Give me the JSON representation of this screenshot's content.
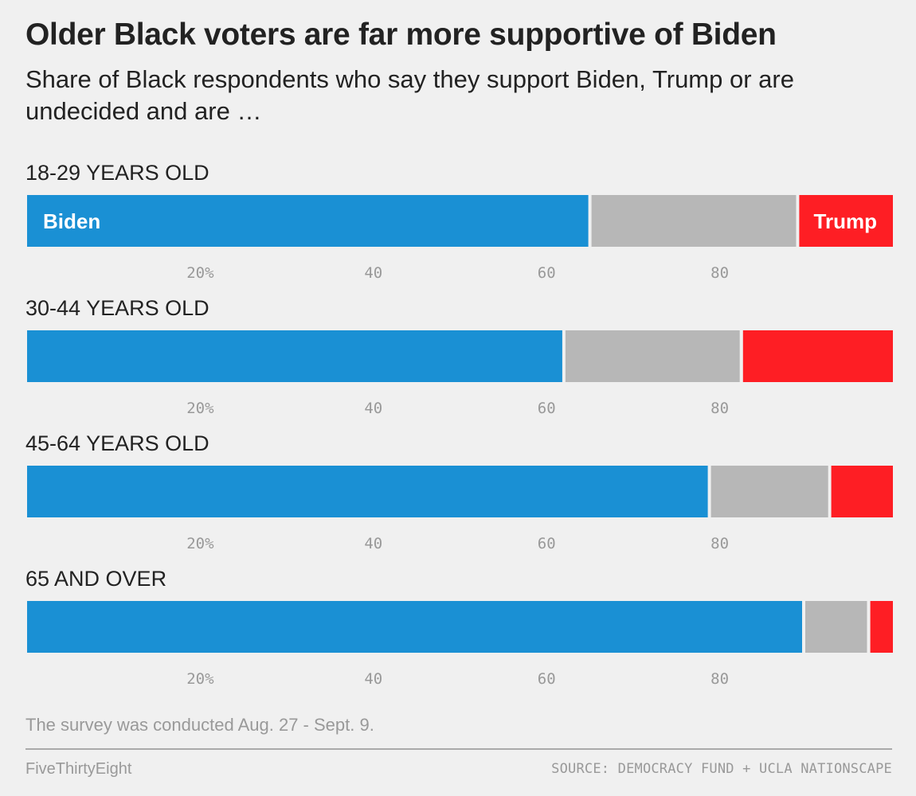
{
  "header": {
    "title": "Older Black voters are far more supportive of Biden",
    "subtitle": "Share of Black respondents who say they support Biden, Trump or are undecided and are …"
  },
  "footer": {
    "note": "The survey was conducted Aug. 27 - Sept. 9.",
    "brand": "FiveThirtyEight",
    "source": "SOURCE: DEMOCRACY FUND + UCLA NATIONSCAPE"
  },
  "colors": {
    "biden": "#1a90d4",
    "undecided": "#b7b7b7",
    "trump": "#fe1e24"
  },
  "chart_data": {
    "type": "bar",
    "orientation": "horizontal-stacked-100",
    "xlim": [
      0,
      100
    ],
    "ticks": [
      {
        "value": 20,
        "label": "20%"
      },
      {
        "value": 40,
        "label": "40"
      },
      {
        "value": 60,
        "label": "60"
      },
      {
        "value": 80,
        "label": "80"
      }
    ],
    "series_names": [
      "Biden",
      "Undecided",
      "Trump"
    ],
    "segment_labels": {
      "biden": "Biden",
      "trump": "Trump"
    },
    "groups": [
      {
        "label": "18-29 YEARS OLD",
        "biden": 65,
        "undecided": 24,
        "trump": 11
      },
      {
        "label": "30-44 YEARS OLD",
        "biden": 62,
        "undecided": 20.5,
        "trump": 17.5
      },
      {
        "label": "45-64 YEARS OLD",
        "biden": 78.8,
        "undecided": 13.9,
        "trump": 7.3
      },
      {
        "label": "65 AND OVER",
        "biden": 89.7,
        "undecided": 7.5,
        "trump": 2.8
      }
    ]
  }
}
